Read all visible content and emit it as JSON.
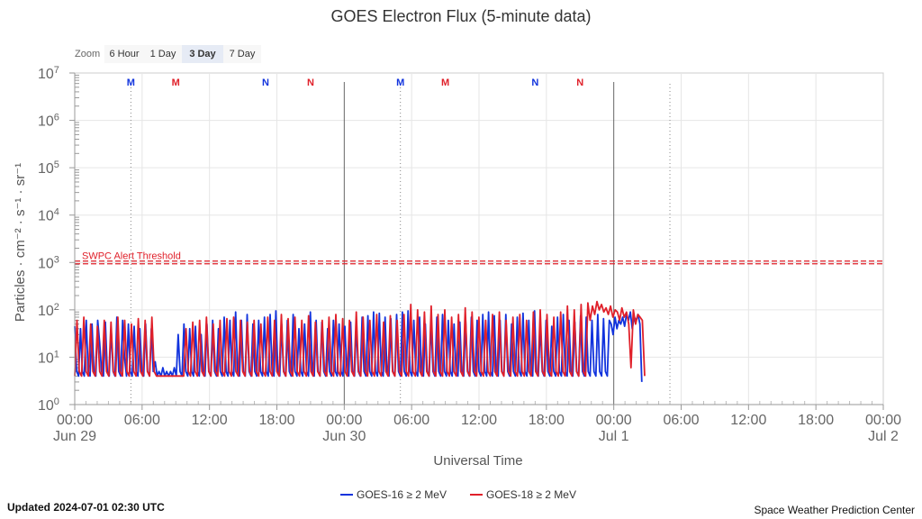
{
  "chart_data": {
    "type": "line",
    "title": "GOES Electron Flux (5-minute data)",
    "xlabel": "Universal Time",
    "ylabel": "Particles · cm⁻² · s⁻¹ · sr⁻¹",
    "yscale": "log",
    "ylim": [
      1,
      10000000
    ],
    "y_ticks": [
      {
        "base": "10",
        "exp": "0"
      },
      {
        "base": "10",
        "exp": "1"
      },
      {
        "base": "10",
        "exp": "2"
      },
      {
        "base": "10",
        "exp": "3"
      },
      {
        "base": "10",
        "exp": "4"
      },
      {
        "base": "10",
        "exp": "5"
      },
      {
        "base": "10",
        "exp": "6"
      },
      {
        "base": "10",
        "exp": "7"
      }
    ],
    "xlim": [
      "2024-06-29T00:00",
      "2024-07-02T00:00"
    ],
    "x_ticks": [
      {
        "time": "00:00",
        "date": "Jun 29"
      },
      {
        "time": "06:00",
        "date": ""
      },
      {
        "time": "12:00",
        "date": ""
      },
      {
        "time": "18:00",
        "date": ""
      },
      {
        "time": "00:00",
        "date": "Jun 30"
      },
      {
        "time": "06:00",
        "date": ""
      },
      {
        "time": "12:00",
        "date": ""
      },
      {
        "time": "18:00",
        "date": ""
      },
      {
        "time": "00:00",
        "date": "Jul 1"
      },
      {
        "time": "06:00",
        "date": ""
      },
      {
        "time": "12:00",
        "date": ""
      },
      {
        "time": "18:00",
        "date": ""
      },
      {
        "time": "00:00",
        "date": "Jul 2"
      }
    ],
    "grid": true,
    "legend_position": "bottom-center",
    "threshold": {
      "label": "SWPC Alert Threshold",
      "value": 1000
    },
    "local_time_markers": [
      {
        "label": "M",
        "color": "#1133dd",
        "time": "2024-06-29T05:00"
      },
      {
        "label": "M",
        "color": "#e0202a",
        "time": "2024-06-29T09:00"
      },
      {
        "label": "N",
        "color": "#1133dd",
        "time": "2024-06-29T17:00"
      },
      {
        "label": "N",
        "color": "#e0202a",
        "time": "2024-06-29T21:00"
      },
      {
        "label": "M",
        "color": "#1133dd",
        "time": "2024-06-30T05:00"
      },
      {
        "label": "M",
        "color": "#e0202a",
        "time": "2024-06-30T09:00"
      },
      {
        "label": "N",
        "color": "#1133dd",
        "time": "2024-06-30T17:00"
      },
      {
        "label": "N",
        "color": "#e0202a",
        "time": "2024-06-30T21:00"
      }
    ],
    "series": [
      {
        "name": "GOES-16 ≥ 2 MeV",
        "color": "#1133dd",
        "x_start": "2024-06-29T00:00",
        "x_end": "2024-07-01T02:30",
        "values": [
          45,
          5,
          4,
          40,
          5,
          4,
          60,
          5,
          4,
          50,
          5,
          4,
          60,
          20,
          5,
          4,
          55,
          5,
          4,
          40,
          5,
          4,
          70,
          5,
          4,
          60,
          10,
          4,
          50,
          5,
          4,
          45,
          5,
          4,
          40,
          5,
          4,
          50,
          5,
          4,
          40,
          5,
          8,
          4,
          5,
          4,
          6,
          4,
          5,
          4,
          5,
          4,
          6,
          4,
          30,
          5,
          4,
          50,
          5,
          4,
          40,
          5,
          4,
          45,
          5,
          4,
          30,
          5,
          4,
          50,
          5,
          4,
          60,
          5,
          4,
          40,
          5,
          4,
          70,
          5,
          4,
          60,
          5,
          4,
          90,
          5,
          4,
          60,
          5,
          4,
          80,
          5,
          4,
          50,
          5,
          4,
          60,
          5,
          4,
          70,
          5,
          4,
          80,
          5,
          4,
          95,
          5,
          4,
          50,
          5,
          4,
          60,
          5,
          4,
          80,
          5,
          4,
          40,
          5,
          4,
          50,
          5,
          4,
          90,
          5,
          4,
          60,
          5,
          4,
          55,
          5,
          4,
          40,
          5,
          4,
          60,
          5,
          4,
          50,
          5,
          4,
          45,
          5,
          4,
          55,
          5,
          4,
          50,
          5,
          4,
          70,
          5,
          4,
          75,
          5,
          4,
          90,
          5,
          4,
          85,
          5,
          4,
          70,
          5,
          4,
          65,
          5,
          4,
          80,
          5,
          4,
          90,
          5,
          4,
          95,
          5,
          4,
          60,
          5,
          4,
          70,
          5,
          4,
          50,
          5,
          4,
          60,
          5,
          4,
          70,
          5,
          4,
          80,
          5,
          4,
          60,
          5,
          4,
          50,
          5,
          4,
          55,
          5,
          4,
          60,
          5,
          4,
          70,
          5,
          4,
          60,
          5,
          4,
          80,
          5,
          4,
          90,
          5,
          4,
          75,
          5,
          4,
          60,
          5,
          4,
          80,
          5,
          4,
          50,
          5,
          4,
          70,
          5,
          4,
          85,
          5,
          4,
          60,
          5,
          4,
          95,
          5,
          4,
          50,
          5,
          4,
          60,
          5,
          4,
          45,
          5,
          4,
          70,
          5,
          4,
          80,
          5,
          4,
          60,
          5,
          4,
          55,
          5,
          4,
          75,
          5,
          4,
          70,
          5,
          4,
          60,
          5,
          4,
          80,
          5,
          4,
          65,
          5,
          4,
          60,
          50,
          30,
          70,
          40,
          60,
          50,
          70,
          45,
          80,
          60,
          90,
          40,
          70,
          60,
          80,
          50,
          3
        ]
      },
      {
        "name": "GOES-18 ≥ 2 MeV",
        "color": "#e0202a",
        "x_start": "2024-06-29T00:00",
        "x_end": "2024-07-01T02:45",
        "values": [
          4,
          60,
          5,
          4,
          70,
          5,
          4,
          50,
          5,
          4,
          45,
          5,
          4,
          60,
          5,
          4,
          55,
          5,
          4,
          70,
          5,
          4,
          60,
          5,
          4,
          50,
          5,
          4,
          65,
          5,
          4,
          60,
          5,
          4,
          70,
          5,
          4,
          4,
          4,
          4,
          4,
          4,
          4,
          4,
          4,
          4,
          4,
          4,
          4,
          40,
          5,
          4,
          55,
          5,
          4,
          60,
          5,
          4,
          70,
          5,
          4,
          50,
          5,
          4,
          60,
          5,
          4,
          65,
          5,
          4,
          70,
          5,
          4,
          60,
          5,
          4,
          55,
          5,
          4,
          60,
          5,
          4,
          50,
          5,
          4,
          70,
          5,
          4,
          60,
          5,
          4,
          80,
          5,
          4,
          65,
          5,
          4,
          70,
          5,
          4,
          60,
          5,
          4,
          75,
          5,
          4,
          55,
          5,
          4,
          60,
          5,
          4,
          70,
          5,
          4,
          80,
          5,
          4,
          65,
          5,
          4,
          60,
          5,
          4,
          90,
          5,
          4,
          70,
          5,
          4,
          60,
          5,
          4,
          80,
          5,
          4,
          55,
          5,
          4,
          75,
          5,
          4,
          60,
          5,
          4,
          80,
          5,
          4,
          130,
          5,
          4,
          100,
          5,
          4,
          90,
          5,
          4,
          120,
          5,
          4,
          80,
          5,
          4,
          100,
          5,
          4,
          70,
          5,
          4,
          80,
          5,
          4,
          110,
          5,
          4,
          90,
          5,
          4,
          70,
          5,
          4,
          60,
          5,
          4,
          80,
          5,
          4,
          90,
          5,
          4,
          60,
          5,
          4,
          70,
          5,
          4,
          80,
          5,
          4,
          60,
          5,
          4,
          90,
          5,
          4,
          100,
          5,
          4,
          80,
          5,
          4,
          70,
          5,
          4,
          90,
          5,
          4,
          120,
          5,
          4,
          100,
          5,
          4,
          130,
          5,
          4,
          140,
          60,
          120,
          80,
          150,
          100,
          130,
          90,
          110,
          80,
          120,
          70,
          100,
          90,
          60,
          110,
          70,
          90,
          50,
          6,
          100,
          50,
          80,
          70,
          60,
          4
        ]
      }
    ]
  },
  "zoom": {
    "label": "Zoom",
    "buttons": [
      {
        "label": "6 Hour",
        "active": false
      },
      {
        "label": "1 Day",
        "active": false
      },
      {
        "label": "3 Day",
        "active": true
      },
      {
        "label": "7 Day",
        "active": false
      }
    ]
  },
  "footer": {
    "updated": "Updated 2024-07-01 02:30 UTC",
    "credit": "Space Weather Prediction Center"
  }
}
